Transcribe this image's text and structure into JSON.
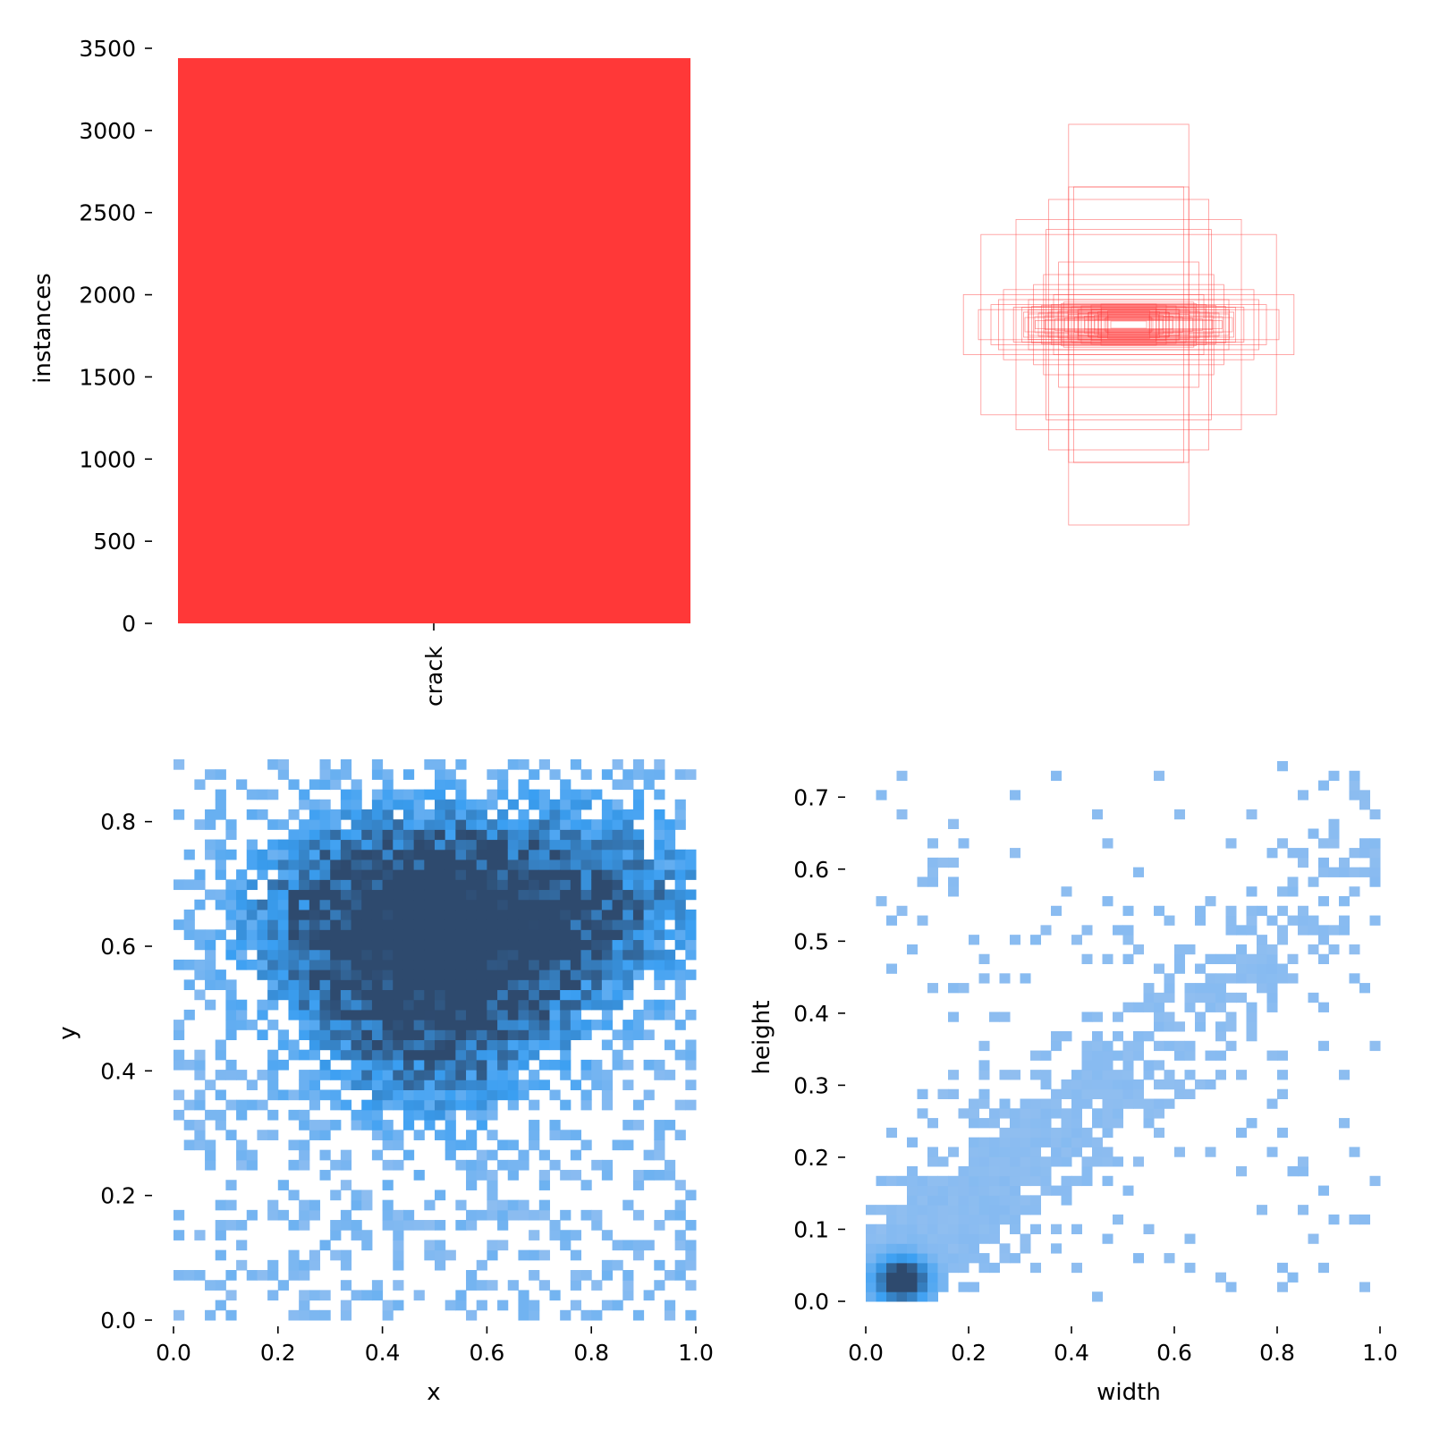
{
  "colors": {
    "bar": "#ff3838",
    "box_stroke": "#ff3838",
    "hist_light": "#a6c6f0",
    "hist_mid": "#3a9ff2",
    "hist_dark": "#2e4a6e"
  },
  "chart_data": [
    {
      "type": "bar",
      "categories": [
        "crack"
      ],
      "values": [
        3440
      ],
      "xlabel": "",
      "ylabel": "instances",
      "ylim": [
        0,
        3500
      ],
      "yticks": [
        "0",
        "500",
        "1000",
        "1500",
        "2000",
        "2500",
        "3000",
        "3500"
      ],
      "grid": false
    },
    {
      "type": "scatter",
      "description_value_units": "normalized box width/height centered at (0.5, 0.5)",
      "xlabel": "",
      "ylabel": "",
      "boxes": [
        {
          "w": 0.24,
          "h": 0.8
        },
        {
          "w": 0.22,
          "h": 0.55
        },
        {
          "w": 0.32,
          "h": 0.5
        },
        {
          "w": 0.24,
          "h": 0.55
        },
        {
          "w": 0.59,
          "h": 0.36
        },
        {
          "w": 0.45,
          "h": 0.42
        },
        {
          "w": 0.33,
          "h": 0.38
        },
        {
          "w": 0.66,
          "h": 0.12
        },
        {
          "w": 0.4,
          "h": 0.1
        },
        {
          "w": 0.55,
          "h": 0.08
        },
        {
          "w": 0.5,
          "h": 0.14
        },
        {
          "w": 0.38,
          "h": 0.16
        },
        {
          "w": 0.3,
          "h": 0.12
        },
        {
          "w": 0.46,
          "h": 0.07
        },
        {
          "w": 0.6,
          "h": 0.06
        },
        {
          "w": 0.26,
          "h": 0.09
        },
        {
          "w": 0.2,
          "h": 0.06
        },
        {
          "w": 0.16,
          "h": 0.05
        },
        {
          "w": 0.12,
          "h": 0.04
        },
        {
          "w": 0.09,
          "h": 0.03
        },
        {
          "w": 0.34,
          "h": 0.2
        },
        {
          "w": 0.28,
          "h": 0.25
        },
        {
          "w": 0.42,
          "h": 0.05
        },
        {
          "w": 0.52,
          "h": 0.1
        }
      ]
    },
    {
      "type": "heatmap",
      "xlabel": "x",
      "ylabel": "y",
      "xlim": [
        0.0,
        1.0
      ],
      "ylim": [
        0.0,
        0.9
      ],
      "xticks": [
        "0.0",
        "0.2",
        "0.4",
        "0.6",
        "0.8",
        "1.0"
      ],
      "yticks": [
        "0.0",
        "0.2",
        "0.4",
        "0.6",
        "0.8"
      ],
      "density_peaks": [
        {
          "x": 0.5,
          "y": 0.63,
          "weight": 1.0
        },
        {
          "x": 0.5,
          "y": 0.48,
          "weight": 0.8
        },
        {
          "x": 0.35,
          "y": 0.66,
          "weight": 0.6
        },
        {
          "x": 0.68,
          "y": 0.66,
          "weight": 0.6
        },
        {
          "x": 0.85,
          "y": 0.68,
          "weight": 0.4
        }
      ]
    },
    {
      "type": "heatmap",
      "xlabel": "width",
      "ylabel": "height",
      "xlim": [
        0.0,
        1.0
      ],
      "ylim": [
        0.0,
        0.75
      ],
      "xticks": [
        "0.0",
        "0.2",
        "0.4",
        "0.6",
        "0.8",
        "1.0"
      ],
      "yticks": [
        "0.0",
        "0.1",
        "0.2",
        "0.3",
        "0.4",
        "0.5",
        "0.6",
        "0.7"
      ],
      "density_peaks": [
        {
          "x": 0.07,
          "y": 0.03,
          "weight": 1.0
        },
        {
          "x": 0.25,
          "y": 0.18,
          "weight": 0.35
        },
        {
          "x": 0.45,
          "y": 0.25,
          "weight": 0.15
        }
      ]
    }
  ]
}
